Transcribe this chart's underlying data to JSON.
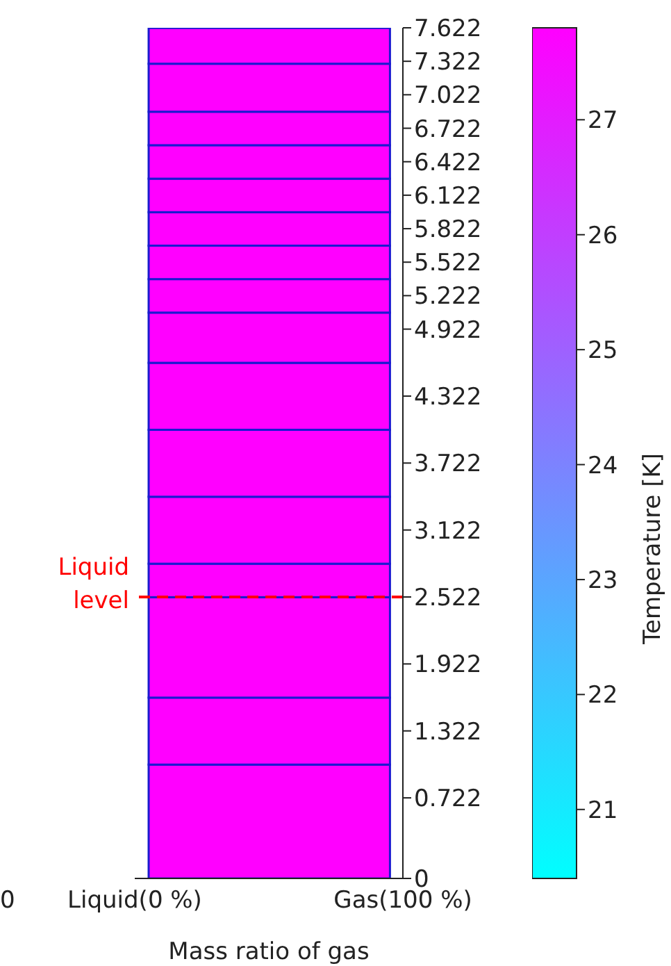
{
  "chart_data": {
    "type": "bar",
    "stacked": true,
    "xlabel": "Mass ratio of gas",
    "clabel": "Temperature [K]",
    "categories": [
      null
    ],
    "ylim": [
      0,
      7.622
    ],
    "yticks": [
      0,
      0.722,
      1.322,
      1.922,
      2.522,
      3.122,
      3.722,
      4.322,
      4.922,
      5.222,
      5.522,
      5.822,
      6.122,
      6.422,
      6.722,
      7.022,
      7.322,
      7.622
    ],
    "series": [
      {
        "values": [
          1.02
        ],
        "cvalues": [
          27.8
        ]
      },
      {
        "values": [
          0.6
        ],
        "cvalues": [
          27.8
        ]
      },
      {
        "values": [
          0.9
        ],
        "cvalues": [
          27.8
        ]
      },
      {
        "values": [
          0.3
        ],
        "cvalues": [
          27.8
        ]
      },
      {
        "values": [
          0.6
        ],
        "cvalues": [
          27.8
        ]
      },
      {
        "values": [
          0.6
        ],
        "cvalues": [
          27.8
        ]
      },
      {
        "values": [
          0.6
        ],
        "cvalues": [
          27.8
        ]
      },
      {
        "values": [
          0.45
        ],
        "cvalues": [
          27.8
        ]
      },
      {
        "values": [
          0.3
        ],
        "cvalues": [
          27.8
        ]
      },
      {
        "values": [
          0.3
        ],
        "cvalues": [
          27.8
        ]
      },
      {
        "values": [
          0.3
        ],
        "cvalues": [
          27.8
        ]
      },
      {
        "values": [
          0.3
        ],
        "cvalues": [
          27.8
        ]
      },
      {
        "values": [
          0.3
        ],
        "cvalues": [
          27.8
        ]
      },
      {
        "values": [
          0.3
        ],
        "cvalues": [
          27.8
        ]
      },
      {
        "values": [
          0.43
        ],
        "cvalues": [
          27.8
        ]
      },
      {
        "values": [
          0.32
        ],
        "cvalues": [
          27.8
        ]
      }
    ],
    "clim": [
      20.4,
      27.8
    ],
    "cticks": [
      21,
      22,
      23,
      24,
      25,
      26,
      27
    ],
    "ref_lines": [
      {
        "axis": "y",
        "value": 2.522,
        "label": "Liquid level",
        "color": "#ff0000",
        "line_style": "dashed"
      }
    ],
    "annotations": [
      "0",
      "Liquid(0 %)",
      "Gas(100 %)"
    ]
  }
}
